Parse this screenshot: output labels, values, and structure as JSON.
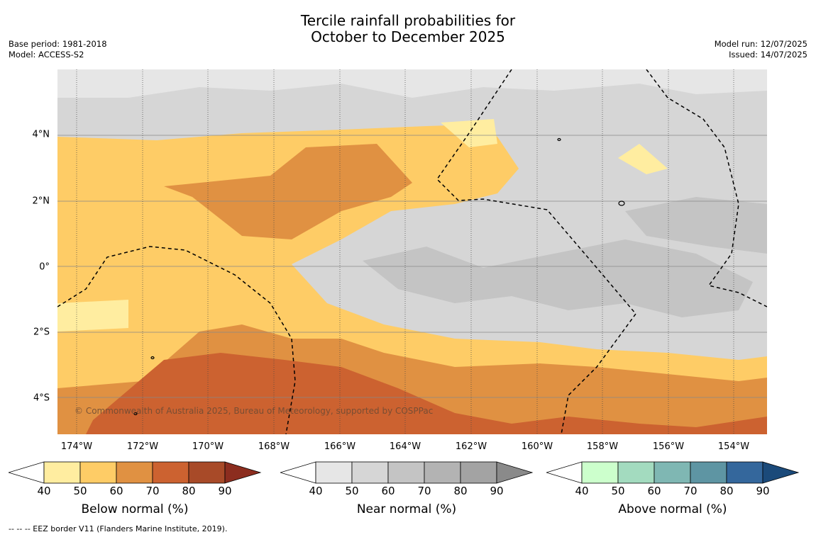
{
  "title": {
    "line1": "Tercile rainfall probabilities for",
    "line2": "October to December 2025"
  },
  "meta": {
    "base_period": "Base period: 1981-2018",
    "model": "Model: ACCESS-S2",
    "model_run": "Model run: 12/07/2025",
    "issued": "Issued: 14/07/2025"
  },
  "axes": {
    "lat_labels": [
      "4°N",
      "2°N",
      "0°",
      "2°S",
      "4°S"
    ],
    "lon_labels": [
      "174°W",
      "172°W",
      "170°W",
      "168°W",
      "166°W",
      "164°W",
      "162°W",
      "160°W",
      "158°W",
      "156°W",
      "154°W"
    ]
  },
  "copyright": "© Commonwealth of Australia 2025, Bureau of Meteorology, supported by COSPPac",
  "colorbars": [
    {
      "title": "Below normal (%)",
      "ticks": [
        "40",
        "50",
        "60",
        "70",
        "80",
        "90"
      ],
      "colors": [
        "#ffffff",
        "#ffeda0",
        "#fecc66",
        "#e09142",
        "#cc6230",
        "#a84a28",
        "#8c2d1f"
      ]
    },
    {
      "title": "Near normal (%)",
      "ticks": [
        "40",
        "50",
        "60",
        "70",
        "80",
        "90"
      ],
      "colors": [
        "#ffffff",
        "#e6e6e6",
        "#d6d6d6",
        "#c4c4c4",
        "#b3b3b3",
        "#a3a3a3",
        "#8a8a8a"
      ]
    },
    {
      "title": "Above normal (%)",
      "ticks": [
        "40",
        "50",
        "60",
        "70",
        "80",
        "90"
      ],
      "colors": [
        "#ffffff",
        "#ccffcc",
        "#a3dbbf",
        "#7fb7b3",
        "#5e95a3",
        "#34679c",
        "#1b4a7a"
      ]
    }
  ],
  "map_colors": {
    "border": "#000000",
    "grid": "#888888"
  },
  "footer": "--  --  -- EEZ border V11 (Flanders Marine Institute, 2019)."
}
